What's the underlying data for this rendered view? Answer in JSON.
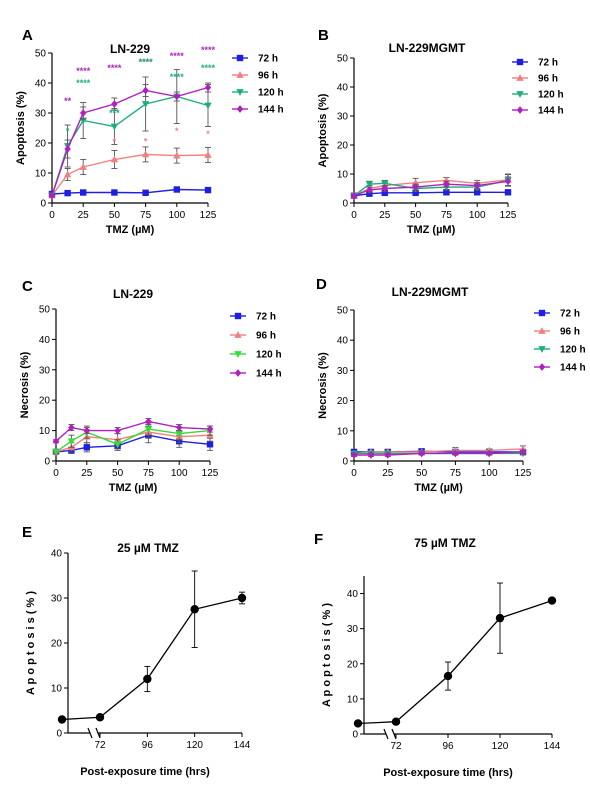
{
  "chart_data": [
    {
      "panel": "A",
      "type": "line",
      "title": "LN-229",
      "xlabel": "TMZ (µM)",
      "ylabel": "Apoptosis (%)",
      "x": [
        0,
        12.5,
        25,
        50,
        75,
        100,
        125
      ],
      "xticks": [
        "0",
        "25",
        "50",
        "75",
        "100",
        "125"
      ],
      "xlim": [
        0,
        125
      ],
      "yticks": [
        "0",
        "10",
        "20",
        "30",
        "40",
        "50"
      ],
      "ylim": [
        0,
        50
      ],
      "legend": "right",
      "series": [
        {
          "name": "72 h",
          "color": "#1f1fe0",
          "marker": "square",
          "values": [
            3.0,
            3.3,
            3.5,
            3.5,
            3.4,
            4.5,
            4.3
          ],
          "err": [
            0.3,
            0.3,
            0.3,
            0.3,
            0.3,
            0.4,
            0.4
          ]
        },
        {
          "name": "96 h",
          "color": "#f08080",
          "marker": "triangle-up",
          "values": [
            2.5,
            9.5,
            12.0,
            14.5,
            16.2,
            15.8,
            16.0
          ],
          "err": [
            0.5,
            2.0,
            2.5,
            3.0,
            2.5,
            2.5,
            2.5
          ]
        },
        {
          "name": "120 h",
          "color": "#1fae7a",
          "marker": "triangle-down",
          "values": [
            2.5,
            19.0,
            27.5,
            25.5,
            33.0,
            35.5,
            32.5
          ],
          "err": [
            0.5,
            7.0,
            6.0,
            6.0,
            9.0,
            9.0,
            7.0
          ]
        },
        {
          "name": "144 h",
          "color": "#b020c0",
          "marker": "diamond",
          "values": [
            2.5,
            18.0,
            30.0,
            33.0,
            37.5,
            35.5,
            38.5
          ],
          "err": [
            0.5,
            3.0,
            2.0,
            2.0,
            2.0,
            1.5,
            1.5
          ]
        }
      ],
      "annotations": [
        {
          "text": "**",
          "x": 12.5,
          "y": 33,
          "color": "#b020c0"
        },
        {
          "text": "*",
          "x": 12.5,
          "y": 23,
          "color": "#1fae7a"
        },
        {
          "text": "****",
          "x": 25,
          "y": 43,
          "color": "#b020c0"
        },
        {
          "text": "****",
          "x": 25,
          "y": 39,
          "color": "#1fae7a"
        },
        {
          "text": "****",
          "x": 50,
          "y": 44,
          "color": "#b020c0"
        },
        {
          "text": "***",
          "x": 50,
          "y": 29,
          "color": "#1fae7a"
        },
        {
          "text": "*",
          "x": 50,
          "y": 19.5,
          "color": "#f08080"
        },
        {
          "text": "****",
          "x": 75,
          "y": 46,
          "color": "#b020c0"
        },
        {
          "text": "****",
          "x": 75,
          "y": 46,
          "color": "#1fae7a"
        },
        {
          "text": "*",
          "x": 75,
          "y": 19.5,
          "color": "#f08080"
        },
        {
          "text": "****",
          "x": 100,
          "y": 48,
          "color": "#b020c0"
        },
        {
          "text": "****",
          "x": 100,
          "y": 41,
          "color": "#1fae7a"
        },
        {
          "text": "*",
          "x": 100,
          "y": 23,
          "color": "#f08080"
        },
        {
          "text": "****",
          "x": 125,
          "y": 50,
          "color": "#b020c0"
        },
        {
          "text": "****",
          "x": 125,
          "y": 44,
          "color": "#1fae7a"
        },
        {
          "text": "*",
          "x": 125,
          "y": 22,
          "color": "#f08080"
        }
      ]
    },
    {
      "panel": "B",
      "type": "line",
      "title": "LN-229MGMT",
      "xlabel": "TMZ (µM)",
      "ylabel": "Apoptosis (%)",
      "x": [
        0,
        12.5,
        25,
        50,
        75,
        100,
        125
      ],
      "xticks": [
        "0",
        "25",
        "50",
        "75",
        "100",
        "125"
      ],
      "xlim": [
        0,
        125
      ],
      "yticks": [
        "0",
        "10",
        "20",
        "30",
        "40",
        "50"
      ],
      "ylim": [
        0,
        50
      ],
      "legend": "right",
      "series": [
        {
          "name": "72 h",
          "color": "#1f1fe0",
          "marker": "square",
          "values": [
            2.5,
            3.2,
            3.5,
            3.5,
            3.7,
            3.7,
            3.7
          ],
          "err": [
            0.3,
            0.3,
            0.3,
            0.3,
            0.3,
            0.3,
            0.3
          ]
        },
        {
          "name": "96 h",
          "color": "#f08080",
          "marker": "triangle-up",
          "values": [
            2.5,
            5.0,
            6.0,
            7.0,
            7.8,
            6.8,
            8.0
          ],
          "err": [
            0.5,
            1.0,
            1.0,
            1.5,
            1.0,
            1.0,
            2.0
          ]
        },
        {
          "name": "120 h",
          "color": "#1fae7a",
          "marker": "triangle-down",
          "values": [
            2.5,
            6.5,
            6.8,
            5.0,
            5.5,
            5.5,
            7.8
          ],
          "err": [
            0.5,
            1.0,
            1.0,
            1.0,
            1.0,
            1.0,
            2.0
          ]
        },
        {
          "name": "144 h",
          "color": "#b020c0",
          "marker": "diamond",
          "values": [
            2.5,
            4.5,
            5.0,
            5.5,
            6.5,
            6.0,
            7.5
          ],
          "err": [
            0.5,
            1.0,
            1.0,
            1.0,
            1.0,
            1.0,
            1.5
          ]
        }
      ],
      "annotations": []
    },
    {
      "panel": "C",
      "type": "line",
      "title": "LN-229",
      "xlabel": "TMZ (µM)",
      "ylabel": "Necrosis (%)",
      "x": [
        0,
        12.5,
        25,
        50,
        75,
        100,
        125
      ],
      "xticks": [
        "0",
        "25",
        "50",
        "75",
        "100",
        "125"
      ],
      "xlim": [
        0,
        125
      ],
      "yticks": [
        "0",
        "10",
        "20",
        "30",
        "40",
        "50"
      ],
      "ylim": [
        0,
        50
      ],
      "legend": "right",
      "series": [
        {
          "name": "72 h",
          "color": "#1f1fe0",
          "marker": "square",
          "values": [
            3.0,
            3.5,
            4.5,
            5.0,
            8.5,
            6.5,
            5.5
          ],
          "err": [
            0.5,
            1.0,
            1.5,
            1.5,
            2.5,
            2.0,
            2.0
          ]
        },
        {
          "name": "96 h",
          "color": "#f08080",
          "marker": "triangle-up",
          "values": [
            3.0,
            4.5,
            8.0,
            7.0,
            9.5,
            8.0,
            8.5
          ],
          "err": [
            0.5,
            1.5,
            2.0,
            2.0,
            2.0,
            2.0,
            2.0
          ]
        },
        {
          "name": "120 h",
          "color": "#33dd33",
          "marker": "triangle-down",
          "values": [
            3.0,
            6.5,
            9.5,
            5.5,
            10.5,
            9.0,
            10.0
          ],
          "err": [
            0.5,
            2.0,
            2.0,
            1.5,
            2.0,
            2.0,
            1.5
          ]
        },
        {
          "name": "144 h",
          "color": "#b020c0",
          "marker": "diamond",
          "values": [
            6.5,
            11.0,
            10.0,
            10.0,
            13.0,
            11.0,
            10.5
          ],
          "err": [
            0.5,
            1.0,
            1.0,
            1.0,
            1.0,
            1.0,
            1.0
          ]
        }
      ],
      "annotations": []
    },
    {
      "panel": "D",
      "type": "line",
      "title": "LN-229MGMT",
      "xlabel": "TMZ (µM)",
      "ylabel": "Necrosis (%)",
      "x": [
        0,
        12.5,
        25,
        50,
        75,
        100,
        125
      ],
      "xticks": [
        "0",
        "25",
        "50",
        "75",
        "100",
        "125"
      ],
      "xlim": [
        0,
        125
      ],
      "yticks": [
        "0",
        "10",
        "20",
        "30",
        "40",
        "50"
      ],
      "ylim": [
        0,
        50
      ],
      "legend": "right",
      "series": [
        {
          "name": "72 h",
          "color": "#1f1fe0",
          "marker": "square",
          "values": [
            3.0,
            3.0,
            3.0,
            3.2,
            3.0,
            3.0,
            3.0
          ],
          "err": [
            0.5,
            0.5,
            0.5,
            0.5,
            0.5,
            0.5,
            0.5
          ]
        },
        {
          "name": "96 h",
          "color": "#f08080",
          "marker": "triangle-up",
          "values": [
            2.5,
            3.0,
            3.0,
            3.0,
            3.5,
            3.5,
            4.0
          ],
          "err": [
            0.5,
            0.5,
            0.5,
            0.5,
            1.0,
            0.5,
            1.0
          ]
        },
        {
          "name": "120 h",
          "color": "#1fae7a",
          "marker": "triangle-down",
          "values": [
            2.5,
            2.5,
            2.5,
            2.5,
            2.5,
            2.5,
            2.5
          ],
          "err": [
            0.5,
            0.5,
            0.5,
            0.5,
            0.5,
            0.5,
            0.5
          ]
        },
        {
          "name": "144 h",
          "color": "#b020c0",
          "marker": "diamond",
          "values": [
            2.0,
            2.0,
            2.0,
            2.5,
            2.5,
            2.5,
            3.0
          ],
          "err": [
            0.5,
            0.5,
            0.5,
            0.5,
            0.5,
            0.5,
            0.5
          ]
        }
      ],
      "annotations": []
    },
    {
      "panel": "E",
      "type": "line",
      "title": "25 µM TMZ",
      "xlabel": "Post-exposure time (hrs)",
      "ylabel": "A p o p t o s i s  ( % )",
      "x": [
        0,
        72,
        96,
        120,
        144
      ],
      "xticks": [
        "72",
        "96",
        "120",
        "144"
      ],
      "xlim": [
        72,
        144
      ],
      "yticks": [
        "0",
        "10",
        "20",
        "30",
        "40"
      ],
      "ylim": [
        0,
        40
      ],
      "legend": "none",
      "series": [
        {
          "name": "",
          "color": "#000000",
          "marker": "circle",
          "values": [
            3.0,
            3.5,
            12.0,
            27.5,
            30.0
          ],
          "err": [
            0,
            0,
            2.8,
            8.5,
            1.3
          ]
        }
      ],
      "annotations": []
    },
    {
      "panel": "F",
      "type": "line",
      "title": "75 µM TMZ",
      "xlabel": "Post-exposure time (hrs)",
      "ylabel": "A p o p t o s i s  ( % )",
      "x": [
        0,
        72,
        96,
        120,
        144
      ],
      "xticks": [
        "72",
        "96",
        "120",
        "144"
      ],
      "xlim": [
        72,
        144
      ],
      "yticks": [
        "0",
        "10",
        "20",
        "30",
        "40"
      ],
      "ylim": [
        0,
        45
      ],
      "legend": "none",
      "series": [
        {
          "name": "",
          "color": "#000000",
          "marker": "circle",
          "values": [
            3.0,
            3.5,
            16.5,
            33.0,
            38.0
          ],
          "err": [
            0,
            0,
            4.0,
            10.0,
            0.5
          ]
        }
      ],
      "annotations": []
    }
  ]
}
